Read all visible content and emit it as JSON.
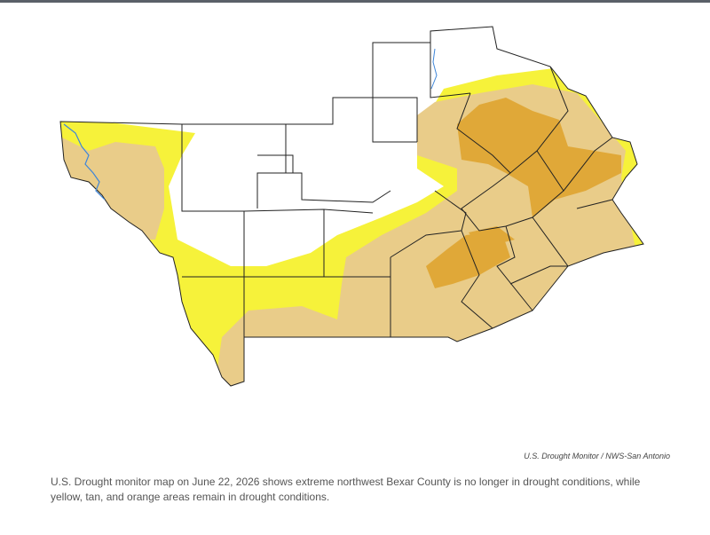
{
  "credit": "U.S. Drought Monitor / NWS-San Antonio",
  "caption": "U.S. Drought monitor map on June 22, 2026 shows extreme northwest Bexar County is no longer in drought conditions, while yellow, tan, and orange areas remain in drought conditions."
}
